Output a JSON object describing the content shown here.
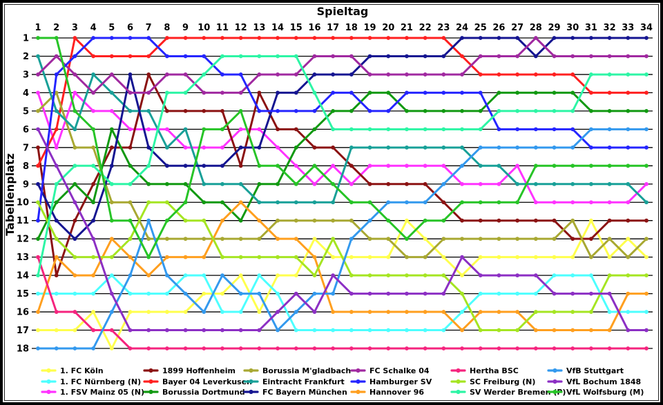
{
  "window": {
    "background": "#ffffff",
    "border_color": "#000000"
  },
  "chart_data": {
    "type": "line",
    "subtype": "bump-chart",
    "title": "Spieltag",
    "xlabel": "Spieltag",
    "ylabel": "Tabellenplatz",
    "x": [
      1,
      2,
      3,
      4,
      5,
      6,
      7,
      8,
      9,
      10,
      11,
      12,
      13,
      14,
      15,
      16,
      17,
      18,
      19,
      20,
      21,
      22,
      23,
      24,
      25,
      26,
      27,
      28,
      29,
      30,
      31,
      32,
      33,
      34
    ],
    "y_ticks": [
      1,
      2,
      3,
      4,
      5,
      6,
      7,
      8,
      9,
      10,
      11,
      12,
      13,
      14,
      15,
      16,
      17,
      18
    ],
    "x_range": [
      1,
      34
    ],
    "y_range": [
      1,
      18
    ],
    "y_inverted": true,
    "grid": "horizontal",
    "legend_position": "bottom",
    "marker": "dot",
    "series": [
      {
        "name": "1. FC Köln",
        "color": "#ffff4d",
        "values": [
          17,
          17,
          17,
          16,
          18,
          16,
          16,
          16,
          16,
          15,
          15,
          14,
          16,
          14,
          14,
          12,
          13,
          13,
          13,
          13,
          11,
          12,
          13,
          14,
          13,
          13,
          13,
          13,
          13,
          13,
          11,
          13,
          12,
          13
        ]
      },
      {
        "name": "1. FC Nürnberg (N)",
        "color": "#4dffff",
        "values": [
          15,
          15,
          15,
          15,
          14,
          15,
          15,
          15,
          14,
          14,
          16,
          16,
          14,
          15,
          17,
          17,
          17,
          17,
          17,
          17,
          17,
          17,
          17,
          16,
          15,
          15,
          15,
          15,
          14,
          14,
          14,
          16,
          16,
          16
        ]
      },
      {
        "name": "1. FSV Mainz 05 (N)",
        "color": "#ff33ff",
        "values": [
          4,
          7,
          4,
          5,
          5,
          6,
          6,
          6,
          7,
          7,
          7,
          6,
          6,
          7,
          8,
          9,
          8,
          9,
          8,
          8,
          8,
          8,
          8,
          9,
          9,
          9,
          8,
          10,
          10,
          10,
          10,
          10,
          10,
          9
        ]
      },
      {
        "name": "1899 Hoffenheim",
        "color": "#8b1212",
        "values": [
          7,
          14,
          11,
          9,
          7,
          7,
          3,
          5,
          5,
          5,
          5,
          8,
          4,
          6,
          6,
          7,
          7,
          8,
          9,
          9,
          9,
          9,
          10,
          11,
          11,
          11,
          11,
          11,
          11,
          12,
          12,
          11,
          11,
          11
        ]
      },
      {
        "name": "Bayer 04 Leverkusen",
        "color": "#ff2020",
        "values": [
          8,
          6,
          1,
          2,
          2,
          2,
          2,
          1,
          1,
          1,
          1,
          1,
          1,
          1,
          1,
          1,
          1,
          1,
          1,
          1,
          1,
          1,
          1,
          2,
          3,
          3,
          3,
          3,
          3,
          3,
          4,
          4,
          4,
          4
        ]
      },
      {
        "name": "Borussia Dortmund",
        "color": "#119911",
        "values": [
          12,
          10,
          9,
          10,
          6,
          8,
          9,
          9,
          9,
          10,
          10,
          11,
          9,
          9,
          7,
          6,
          5,
          5,
          4,
          4,
          5,
          5,
          5,
          5,
          5,
          4,
          4,
          4,
          4,
          4,
          5,
          5,
          5,
          5
        ]
      },
      {
        "name": "Borussia M'gladbach",
        "color": "#a8a832",
        "values": [
          5,
          4,
          7,
          7,
          10,
          10,
          12,
          12,
          12,
          12,
          12,
          12,
          12,
          11,
          11,
          11,
          11,
          11,
          12,
          12,
          13,
          13,
          12,
          12,
          12,
          12,
          12,
          12,
          12,
          11,
          13,
          12,
          13,
          12
        ]
      },
      {
        "name": "Eintracht Frankfurt",
        "color": "#18a098",
        "values": [
          2,
          5,
          6,
          3,
          4,
          5,
          5,
          7,
          6,
          9,
          9,
          9,
          10,
          10,
          10,
          10,
          10,
          7,
          7,
          7,
          7,
          7,
          7,
          7,
          8,
          8,
          9,
          9,
          9,
          9,
          9,
          9,
          9,
          10
        ]
      },
      {
        "name": "FC Bayern München",
        "color": "#151591",
        "values": [
          9,
          11,
          12,
          11,
          8,
          3,
          7,
          8,
          8,
          8,
          8,
          7,
          7,
          4,
          4,
          3,
          3,
          3,
          2,
          2,
          2,
          2,
          2,
          1,
          1,
          1,
          1,
          2,
          1,
          1,
          1,
          1,
          1,
          1
        ]
      },
      {
        "name": "FC Schalke 04",
        "color": "#a029a0",
        "values": [
          3,
          2,
          3,
          4,
          3,
          4,
          4,
          3,
          3,
          4,
          4,
          4,
          3,
          3,
          3,
          2,
          2,
          2,
          3,
          3,
          3,
          3,
          3,
          3,
          2,
          2,
          2,
          1,
          2,
          2,
          2,
          2,
          2,
          2
        ]
      },
      {
        "name": "Hamburger SV",
        "color": "#2525ff",
        "values": [
          11,
          3,
          2,
          1,
          1,
          1,
          1,
          2,
          2,
          2,
          3,
          3,
          5,
          5,
          5,
          5,
          4,
          4,
          5,
          5,
          4,
          4,
          4,
          4,
          4,
          6,
          6,
          6,
          6,
          6,
          7,
          7,
          7,
          7
        ]
      },
      {
        "name": "Hannover 96",
        "color": "#ff9f1f",
        "values": [
          16,
          13,
          14,
          14,
          12,
          13,
          14,
          13,
          13,
          13,
          11,
          10,
          11,
          12,
          12,
          13,
          16,
          16,
          16,
          16,
          16,
          16,
          16,
          17,
          16,
          16,
          16,
          17,
          17,
          17,
          17,
          17,
          15,
          15
        ]
      },
      {
        "name": "Hertha BSC",
        "color": "#f5247e",
        "values": [
          13,
          16,
          16,
          17,
          17,
          18,
          18,
          18,
          18,
          18,
          18,
          18,
          18,
          18,
          18,
          18,
          18,
          18,
          18,
          18,
          18,
          18,
          18,
          18,
          18,
          18,
          18,
          18,
          18,
          18,
          18,
          18,
          18,
          18
        ]
      },
      {
        "name": "SC Freiburg (N)",
        "color": "#a5e522",
        "values": [
          10,
          12,
          13,
          13,
          13,
          12,
          10,
          10,
          11,
          11,
          13,
          13,
          13,
          13,
          13,
          14,
          12,
          14,
          14,
          14,
          14,
          14,
          14,
          15,
          17,
          17,
          17,
          16,
          16,
          16,
          16,
          14,
          14,
          14
        ]
      },
      {
        "name": "SV Werder Bremen (P)",
        "color": "#2df5a5",
        "values": [
          14,
          9,
          8,
          8,
          9,
          9,
          8,
          4,
          4,
          3,
          2,
          2,
          2,
          2,
          2,
          4,
          6,
          6,
          6,
          6,
          6,
          6,
          6,
          6,
          6,
          5,
          5,
          5,
          5,
          5,
          3,
          3,
          3,
          3
        ]
      },
      {
        "name": "VfB Stuttgart",
        "color": "#3399ee",
        "values": [
          18,
          18,
          18,
          18,
          16,
          14,
          11,
          14,
          15,
          16,
          14,
          15,
          15,
          17,
          16,
          15,
          15,
          12,
          11,
          10,
          10,
          10,
          9,
          8,
          7,
          7,
          7,
          7,
          7,
          7,
          6,
          6,
          6,
          6
        ]
      },
      {
        "name": "VfL Bochum 1848",
        "color": "#8c2fc4",
        "values": [
          6,
          8,
          10,
          12,
          15,
          17,
          17,
          17,
          17,
          17,
          17,
          17,
          17,
          16,
          15,
          16,
          14,
          15,
          15,
          15,
          15,
          15,
          15,
          13,
          14,
          14,
          14,
          14,
          15,
          15,
          15,
          15,
          17,
          17
        ]
      },
      {
        "name": "VfL Wolfsburg (M)",
        "color": "#27c427",
        "values": [
          1,
          1,
          5,
          6,
          11,
          11,
          13,
          11,
          10,
          6,
          6,
          5,
          8,
          8,
          9,
          8,
          9,
          10,
          10,
          11,
          12,
          11,
          11,
          10,
          10,
          10,
          10,
          8,
          8,
          8,
          8,
          8,
          8,
          8
        ]
      }
    ],
    "legend_rows": [
      [
        0,
        3,
        6,
        9,
        12,
        15
      ],
      [
        1,
        4,
        7,
        10,
        13,
        16
      ],
      [
        2,
        5,
        8,
        11,
        14,
        17
      ]
    ]
  }
}
